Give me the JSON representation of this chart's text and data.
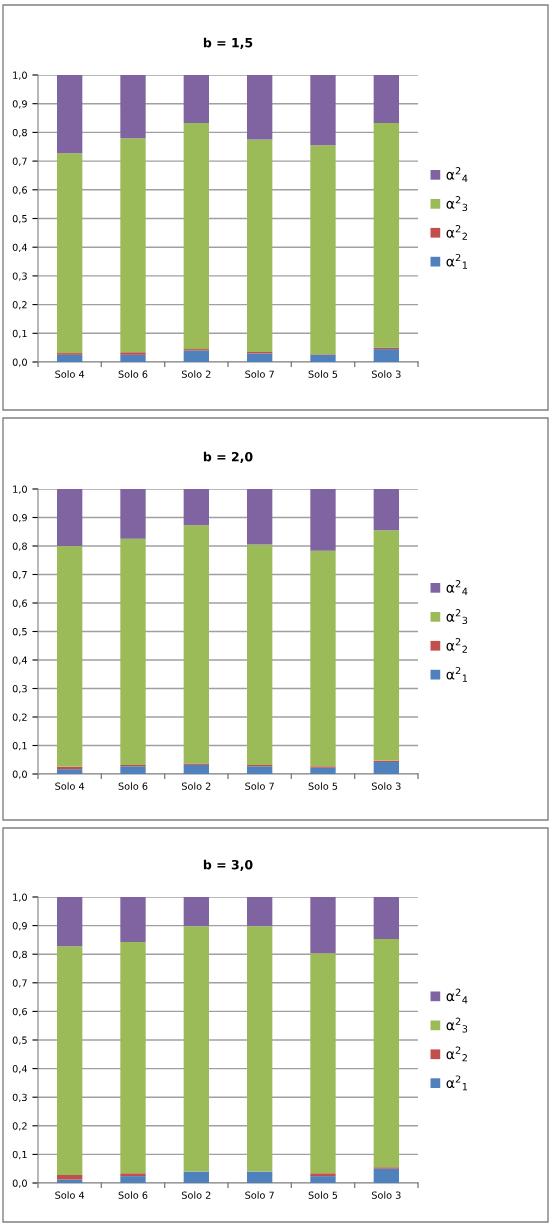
{
  "chart_data": [
    {
      "type": "bar",
      "title": "b = 1,5",
      "stacked": true,
      "grid": "y",
      "legend": "right",
      "categories": [
        "Solo 4",
        "Solo 6",
        "Solo 2",
        "Solo 7",
        "Solo 5",
        "Solo 3"
      ],
      "ylim": [
        0,
        1
      ],
      "yticks": [
        {
          "value": 0,
          "label": "0,0"
        },
        {
          "value": 0.1,
          "label": "0,1"
        },
        {
          "value": 0.2,
          "label": "0,2"
        },
        {
          "value": 0.3,
          "label": "0,3"
        },
        {
          "value": 0.4,
          "label": "0,4"
        },
        {
          "value": 0.5,
          "label": "0,5"
        },
        {
          "value": 0.6,
          "label": "0,6"
        },
        {
          "value": 0.7,
          "label": "0,7"
        },
        {
          "value": 0.8,
          "label": "0,8"
        },
        {
          "value": 0.9,
          "label": "0,9"
        },
        {
          "value": 1,
          "label": "1,0"
        }
      ],
      "series": [
        {
          "name": "α$^{2}$$_{1}$",
          "color": "#4f81bd",
          "values": [
            0.025,
            0.025,
            0.04,
            0.03,
            0.025,
            0.045
          ]
        },
        {
          "name": "α$^{2}$$_{2}$",
          "color": "#c0504d",
          "values": [
            0.006,
            0.009,
            0.005,
            0.005,
            0.002,
            0.005
          ]
        },
        {
          "name": "α$^{2}$$_{3}$",
          "color": "#9bbb59",
          "values": [
            0.696,
            0.746,
            0.788,
            0.74,
            0.728,
            0.783
          ]
        },
        {
          "name": "α$^{2}$$_{4}$",
          "color": "#8064a2",
          "values": [
            0.273,
            0.22,
            0.167,
            0.225,
            0.245,
            0.167
          ]
        }
      ]
    },
    {
      "type": "bar",
      "title": "b = 2,0",
      "stacked": true,
      "grid": "y",
      "legend": "right",
      "categories": [
        "Solo 4",
        "Solo 6",
        "Solo 2",
        "Solo 7",
        "Solo 5",
        "Solo 3"
      ],
      "ylim": [
        0,
        1
      ],
      "yticks": [
        {
          "value": 0,
          "label": "0,0"
        },
        {
          "value": 0.1,
          "label": "0,1"
        },
        {
          "value": 0.2,
          "label": "0,2"
        },
        {
          "value": 0.3,
          "label": "0,3"
        },
        {
          "value": 0.4,
          "label": "0,4"
        },
        {
          "value": 0.5,
          "label": "0,5"
        },
        {
          "value": 0.6,
          "label": "0,6"
        },
        {
          "value": 0.7,
          "label": "0,7"
        },
        {
          "value": 0.8,
          "label": "0,8"
        },
        {
          "value": 0.9,
          "label": "0,9"
        },
        {
          "value": 1,
          "label": "1,0"
        }
      ],
      "series": [
        {
          "name": "α$^{2}$$_{1}$",
          "color": "#4f81bd",
          "values": [
            0.017,
            0.027,
            0.032,
            0.027,
            0.022,
            0.042
          ]
        },
        {
          "name": "α$^{2}$$_{2}$",
          "color": "#c0504d",
          "values": [
            0.009,
            0.005,
            0.005,
            0.005,
            0.005,
            0.005
          ]
        },
        {
          "name": "α$^{2}$$_{3}$",
          "color": "#9bbb59",
          "values": [
            0.774,
            0.793,
            0.836,
            0.773,
            0.756,
            0.808
          ]
        },
        {
          "name": "α$^{2}$$_{4}$",
          "color": "#8064a2",
          "values": [
            0.2,
            0.175,
            0.127,
            0.195,
            0.217,
            0.145
          ]
        }
      ]
    },
    {
      "type": "bar",
      "title": "b = 3,0",
      "stacked": true,
      "grid": "y",
      "legend": "right",
      "categories": [
        "Solo 4",
        "Solo 6",
        "Solo 2",
        "Solo 7",
        "Solo 5",
        "Solo 3"
      ],
      "ylim": [
        0,
        1
      ],
      "yticks": [
        {
          "value": 0,
          "label": "0,0"
        },
        {
          "value": 0.1,
          "label": "0,1"
        },
        {
          "value": 0.2,
          "label": "0,2"
        },
        {
          "value": 0.3,
          "label": "0,3"
        },
        {
          "value": 0.4,
          "label": "0,4"
        },
        {
          "value": 0.5,
          "label": "0,5"
        },
        {
          "value": 0.6,
          "label": "0,6"
        },
        {
          "value": 0.7,
          "label": "0,7"
        },
        {
          "value": 0.8,
          "label": "0,8"
        },
        {
          "value": 0.9,
          "label": "0,9"
        },
        {
          "value": 1,
          "label": "1,0"
        }
      ],
      "series": [
        {
          "name": "α$^{2}$$_{1}$",
          "color": "#4f81bd",
          "values": [
            0.012,
            0.024,
            0.04,
            0.04,
            0.024,
            0.05
          ]
        },
        {
          "name": "α$^{2}$$_{2}$",
          "color": "#c0504d",
          "values": [
            0.016,
            0.01,
            0,
            0,
            0.01,
            0.005
          ]
        },
        {
          "name": "α$^{2}$$_{3}$",
          "color": "#9bbb59",
          "values": [
            0.8,
            0.809,
            0.858,
            0.858,
            0.769,
            0.798
          ]
        },
        {
          "name": "α$^{2}$$_{4}$",
          "color": "#8064a2",
          "values": [
            0.172,
            0.157,
            0.102,
            0.102,
            0.197,
            0.147
          ]
        }
      ]
    }
  ]
}
